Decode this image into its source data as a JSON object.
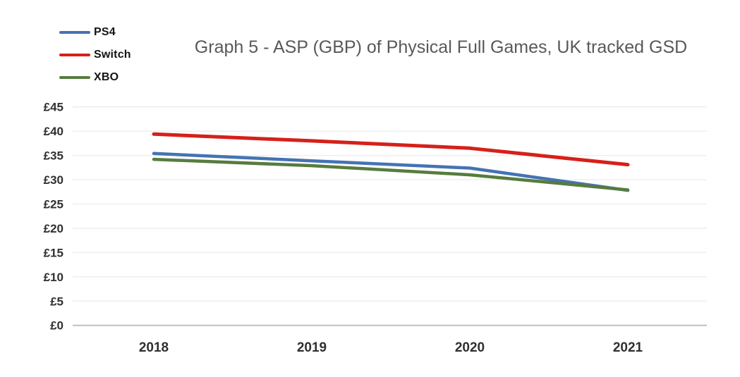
{
  "chart_data": {
    "type": "line",
    "title": "Graph 5 - ASP (GBP) of Physical Full Games, UK tracked GSD",
    "categories": [
      "2018",
      "2019",
      "2020",
      "2021"
    ],
    "series": [
      {
        "name": "PS4",
        "color": "#4573b3",
        "values": [
          35.4,
          33.9,
          32.4,
          27.8
        ]
      },
      {
        "name": "Switch",
        "color": "#d6201a",
        "values": [
          39.4,
          38.0,
          36.5,
          33.1
        ]
      },
      {
        "name": "XBO",
        "color": "#567c3e",
        "values": [
          34.2,
          32.9,
          31.0,
          27.9
        ]
      }
    ],
    "ylim": [
      0,
      45
    ],
    "y_tick_step": 5,
    "y_tick_labels": [
      "£0",
      "£5",
      "£10",
      "£15",
      "£20",
      "£25",
      "£30",
      "£35",
      "£40",
      "£45"
    ],
    "xlabel": "",
    "ylabel": "",
    "grid": true,
    "legend_position": "top-left",
    "colors": {
      "title_text": "#595959",
      "axis_label_text": "#303030",
      "gridline": "#ececec",
      "baseline": "#bfbfbf",
      "background": "#ffffff"
    }
  }
}
